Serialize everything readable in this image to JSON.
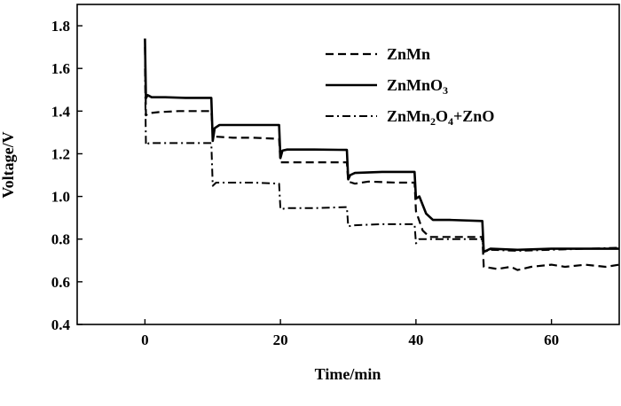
{
  "chart_data": {
    "type": "line",
    "title": "",
    "xlabel": "Time/min",
    "ylabel": "Voltage/V",
    "xlim": [
      -10,
      70
    ],
    "ylim": [
      0.4,
      1.9
    ],
    "xticks": [
      0,
      20,
      40,
      60
    ],
    "xtick_labels": [
      "0",
      "20",
      "40",
      "60"
    ],
    "yticks": [
      0.4,
      0.6,
      0.8,
      1.0,
      1.2,
      1.4,
      1.6,
      1.8
    ],
    "ytick_labels": [
      "0.4",
      "0.6",
      "0.8",
      "1.0",
      "1.2",
      "1.4",
      "1.6",
      "1.8"
    ],
    "grid": false,
    "legend_position": "top-right",
    "series": [
      {
        "name": "ZnMn",
        "style": "dashed",
        "points": [
          [
            0,
            1.7
          ],
          [
            0.15,
            1.38
          ],
          [
            0.6,
            1.39
          ],
          [
            2,
            1.395
          ],
          [
            5,
            1.4
          ],
          [
            8,
            1.4
          ],
          [
            9.8,
            1.4
          ],
          [
            10,
            1.3
          ],
          [
            10.5,
            1.28
          ],
          [
            13,
            1.275
          ],
          [
            16,
            1.275
          ],
          [
            19.8,
            1.27
          ],
          [
            20,
            1.16
          ],
          [
            22,
            1.16
          ],
          [
            26,
            1.16
          ],
          [
            29.8,
            1.16
          ],
          [
            30,
            1.07
          ],
          [
            31,
            1.06
          ],
          [
            33,
            1.07
          ],
          [
            37,
            1.065
          ],
          [
            39.8,
            1.065
          ],
          [
            40,
            0.93
          ],
          [
            41,
            0.84
          ],
          [
            42,
            0.81
          ],
          [
            45,
            0.81
          ],
          [
            49.8,
            0.81
          ],
          [
            50,
            0.67
          ],
          [
            52,
            0.66
          ],
          [
            54,
            0.67
          ],
          [
            55,
            0.655
          ],
          [
            57,
            0.67
          ],
          [
            60,
            0.68
          ],
          [
            62,
            0.67
          ],
          [
            65,
            0.68
          ],
          [
            68,
            0.67
          ],
          [
            70,
            0.68
          ]
        ]
      },
      {
        "name": "ZnMnO3",
        "style": "solid",
        "points": [
          [
            0,
            1.74
          ],
          [
            0.15,
            1.46
          ],
          [
            0.4,
            1.475
          ],
          [
            1,
            1.465
          ],
          [
            3,
            1.465
          ],
          [
            6,
            1.462
          ],
          [
            9.8,
            1.462
          ],
          [
            10,
            1.26
          ],
          [
            10.3,
            1.32
          ],
          [
            11,
            1.335
          ],
          [
            14,
            1.335
          ],
          [
            19.8,
            1.335
          ],
          [
            20,
            1.18
          ],
          [
            20.3,
            1.215
          ],
          [
            21,
            1.22
          ],
          [
            25,
            1.22
          ],
          [
            29.8,
            1.218
          ],
          [
            30,
            1.08
          ],
          [
            30.3,
            1.1
          ],
          [
            31,
            1.11
          ],
          [
            35,
            1.115
          ],
          [
            39.8,
            1.115
          ],
          [
            40,
            0.99
          ],
          [
            40.5,
            1.0
          ],
          [
            41.5,
            0.92
          ],
          [
            42.5,
            0.89
          ],
          [
            45,
            0.89
          ],
          [
            49.8,
            0.885
          ],
          [
            50,
            0.74
          ],
          [
            51,
            0.755
          ],
          [
            55,
            0.75
          ],
          [
            60,
            0.755
          ],
          [
            65,
            0.755
          ],
          [
            70,
            0.755
          ]
        ]
      },
      {
        "name": "ZnMn2O4+ZnO",
        "style": "dashdot",
        "points": [
          [
            0,
            1.6
          ],
          [
            0.15,
            1.24
          ],
          [
            0.6,
            1.25
          ],
          [
            3,
            1.25
          ],
          [
            7,
            1.25
          ],
          [
            9.8,
            1.25
          ],
          [
            10,
            1.05
          ],
          [
            10.5,
            1.065
          ],
          [
            13,
            1.065
          ],
          [
            16,
            1.065
          ],
          [
            19.8,
            1.06
          ],
          [
            20,
            0.94
          ],
          [
            21,
            0.945
          ],
          [
            25,
            0.945
          ],
          [
            29.8,
            0.95
          ],
          [
            30,
            0.86
          ],
          [
            31,
            0.865
          ],
          [
            35,
            0.87
          ],
          [
            39.8,
            0.87
          ],
          [
            40,
            0.78
          ],
          [
            40.5,
            0.8
          ],
          [
            43,
            0.8
          ],
          [
            49.8,
            0.8
          ],
          [
            50,
            0.74
          ],
          [
            51,
            0.75
          ],
          [
            55,
            0.745
          ],
          [
            60,
            0.75
          ],
          [
            65,
            0.755
          ],
          [
            70,
            0.76
          ]
        ]
      }
    ],
    "legend": [
      {
        "key": "ZnMn",
        "text": "ZnMn"
      },
      {
        "key": "ZnMnO3",
        "text": "ZnMnO",
        "sub": "3"
      },
      {
        "key": "ZnMn2O4+ZnO",
        "text": "ZnMn",
        "sub": "2",
        "text2": "O",
        "sub2": "4",
        "text3": "+ZnO"
      }
    ]
  }
}
